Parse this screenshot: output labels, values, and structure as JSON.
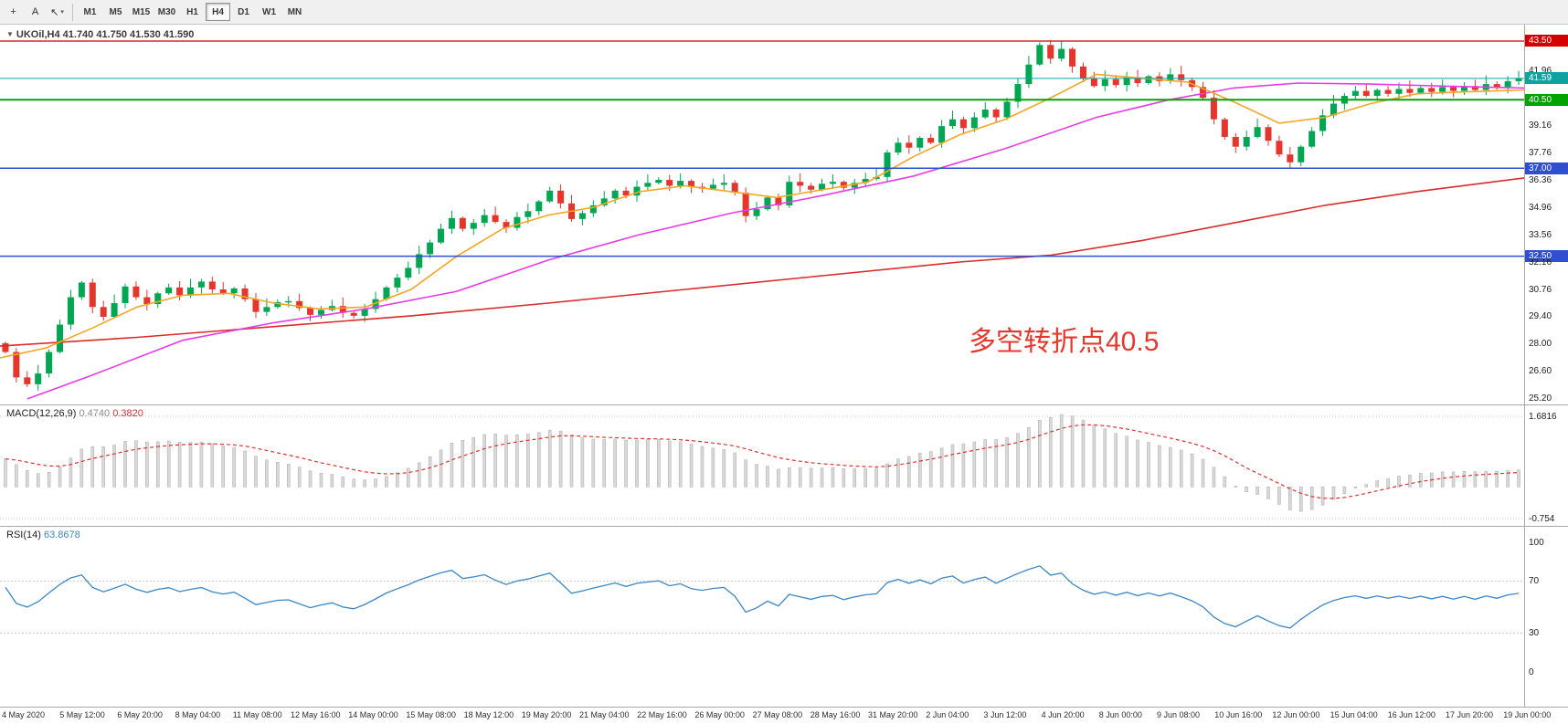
{
  "toolbar": {
    "crosshair_glyph": "+",
    "text_tool_label": "A",
    "arrow_tool_glyph": "↖",
    "dropdown_glyph": "▾",
    "timeframes": [
      "M1",
      "M5",
      "M15",
      "M30",
      "H1",
      "H4",
      "D1",
      "W1",
      "MN"
    ],
    "active_timeframe": "H4"
  },
  "chart_header": {
    "marker_glyph": "▼",
    "symbol_title": "UKOil,H4 41.740 41.750 41.530 41.590"
  },
  "annotation": {
    "text": "多空转折点40.5",
    "color": "#e8372c"
  },
  "indicators": {
    "macd": {
      "label": "MACD(12,26,9)",
      "value_main": "0.4740",
      "value_signal": "0.3820",
      "scale_max": "1.6816",
      "scale_min": "-0.754"
    },
    "rsi": {
      "label": "RSI(14)",
      "value": "63.8678",
      "levels": [
        "100",
        "70",
        "30",
        "0"
      ]
    }
  },
  "price_scale": {
    "labels": [
      {
        "value": 43.5,
        "text": "43.50",
        "style": "badge-red"
      },
      {
        "value": 41.96,
        "text": "41.96",
        "style": "plain"
      },
      {
        "value": 41.59,
        "text": "41.59",
        "style": "badge-teal"
      },
      {
        "value": 40.5,
        "text": "40.50",
        "style": "badge-green"
      },
      {
        "value": 39.16,
        "text": "39.16",
        "style": "plain"
      },
      {
        "value": 37.76,
        "text": "37.76",
        "style": "plain"
      },
      {
        "value": 37.0,
        "text": "37.00",
        "style": "badge-blue"
      },
      {
        "value": 36.36,
        "text": "36.36",
        "style": "plain"
      },
      {
        "value": 34.96,
        "text": "34.96",
        "style": "plain"
      },
      {
        "value": 33.56,
        "text": "33.56",
        "style": "plain"
      },
      {
        "value": 32.5,
        "text": "32.50",
        "style": "badge-blue"
      },
      {
        "value": 32.16,
        "text": "32.16",
        "style": "plain"
      },
      {
        "value": 30.76,
        "text": "30.76",
        "style": "plain"
      },
      {
        "value": 29.4,
        "text": "29.40",
        "style": "plain"
      },
      {
        "value": 28.0,
        "text": "28.00",
        "style": "plain"
      },
      {
        "value": 26.6,
        "text": "26.60",
        "style": "plain"
      },
      {
        "value": 25.2,
        "text": "25.20",
        "style": "plain"
      }
    ]
  },
  "time_axis": {
    "labels": [
      "4 May 2020",
      "5 May 12:00",
      "6 May 20:00",
      "8 May 04:00",
      "11 May 08:00",
      "12 May 16:00",
      "14 May 00:00",
      "15 May 08:00",
      "18 May 12:00",
      "19 May 20:00",
      "21 May 04:00",
      "22 May 16:00",
      "26 May 00:00",
      "27 May 08:00",
      "28 May 16:00",
      "31 May 20:00",
      "2 Jun 04:00",
      "3 Jun 12:00",
      "4 Jun 20:00",
      "8 Jun 00:00",
      "9 Jun 08:00",
      "10 Jun 16:00",
      "12 Jun 00:00",
      "15 Jun 04:00",
      "16 Jun 12:00",
      "17 Jun 20:00",
      "19 Jun 00:00"
    ]
  },
  "colors": {
    "candle_up": "#00a651",
    "candle_down": "#e5352c",
    "ma_fast": "#f5a623",
    "ma_mid": "#e63ce6",
    "ma_slow": "#d92b2b",
    "macd_hist": "#d9d9d9",
    "macd_hist_border": "#a9a9a9",
    "macd_signal": "#e03131",
    "rsi": "#3a87c8",
    "level_red": "#e02222",
    "level_teal": "#0fa3a0",
    "level_green": "#00a300",
    "level_blue": "#2e4fd0"
  },
  "chart_data": {
    "type": "candlestick",
    "symbol": "UKOil",
    "timeframe": "H4",
    "quote": {
      "open": 41.74,
      "high": 41.75,
      "low": 41.53,
      "close": 41.59
    },
    "price_axis": {
      "max": 44.34,
      "min": 24.87
    },
    "closes": [
      27.6,
      26.3,
      25.95,
      26.5,
      27.6,
      29.0,
      30.4,
      31.15,
      29.9,
      29.4,
      30.1,
      30.95,
      30.4,
      30.05,
      30.6,
      30.9,
      30.5,
      30.9,
      31.2,
      30.8,
      30.6,
      30.85,
      30.3,
      29.65,
      29.9,
      30.15,
      30.2,
      29.85,
      29.5,
      29.75,
      29.95,
      29.6,
      29.45,
      29.8,
      30.3,
      30.9,
      31.4,
      31.9,
      32.6,
      33.2,
      33.9,
      34.45,
      33.9,
      34.2,
      34.6,
      34.25,
      33.95,
      34.5,
      34.8,
      35.3,
      35.85,
      35.2,
      34.4,
      34.7,
      35.1,
      35.45,
      35.85,
      35.6,
      36.05,
      36.25,
      36.4,
      36.1,
      36.35,
      36.05,
      35.95,
      36.15,
      36.25,
      35.75,
      34.55,
      34.9,
      35.5,
      35.1,
      36.3,
      36.1,
      35.9,
      36.2,
      36.3,
      36.0,
      36.25,
      36.45,
      36.55,
      37.8,
      38.3,
      38.05,
      38.55,
      38.3,
      39.15,
      39.5,
      39.05,
      39.6,
      40.0,
      39.6,
      40.4,
      41.3,
      42.3,
      43.3,
      42.6,
      43.1,
      42.2,
      41.6,
      41.2,
      41.55,
      41.25,
      41.65,
      41.35,
      41.7,
      41.45,
      41.8,
      41.5,
      41.15,
      40.6,
      39.5,
      38.6,
      38.1,
      38.6,
      39.1,
      38.4,
      37.7,
      37.3,
      38.1,
      38.9,
      39.7,
      40.3,
      40.7,
      40.95,
      40.7,
      41.0,
      40.8,
      41.05,
      40.85,
      41.1,
      40.9,
      41.15,
      40.95,
      41.2,
      41.0,
      41.3,
      41.15,
      41.45,
      41.59
    ],
    "levels": [
      {
        "price": 43.5,
        "color": "#e02222",
        "width": 1.5
      },
      {
        "price": 41.59,
        "color": "#0fa3a0",
        "width": 1
      },
      {
        "price": 40.5,
        "color": "#00a300",
        "width": 2
      },
      {
        "price": 37.0,
        "color": "#2e4fd0",
        "width": 1.5
      },
      {
        "price": 32.5,
        "color": "#2e4fd0",
        "width": 1.5
      }
    ],
    "ma_fast_orange": [
      [
        0,
        27.3
      ],
      [
        50,
        27.8
      ],
      [
        100,
        28.8
      ],
      [
        150,
        29.9
      ],
      [
        200,
        30.5
      ],
      [
        250,
        30.6
      ],
      [
        300,
        30.1
      ],
      [
        350,
        29.8
      ],
      [
        400,
        29.9
      ],
      [
        450,
        30.8
      ],
      [
        500,
        32.5
      ],
      [
        550,
        33.9
      ],
      [
        600,
        34.6
      ],
      [
        650,
        35.0
      ],
      [
        700,
        35.8
      ],
      [
        750,
        36.1
      ],
      [
        800,
        35.8
      ],
      [
        850,
        35.5
      ],
      [
        900,
        35.9
      ],
      [
        950,
        36.3
      ],
      [
        1000,
        37.6
      ],
      [
        1050,
        38.7
      ],
      [
        1100,
        39.5
      ],
      [
        1150,
        40.6
      ],
      [
        1200,
        41.8
      ],
      [
        1250,
        41.6
      ],
      [
        1300,
        41.4
      ],
      [
        1350,
        40.4
      ],
      [
        1400,
        39.3
      ],
      [
        1450,
        39.6
      ],
      [
        1500,
        40.3
      ],
      [
        1550,
        40.8
      ],
      [
        1600,
        40.9
      ],
      [
        1668,
        41.0
      ]
    ],
    "ma_mid_magenta": [
      [
        30,
        25.2
      ],
      [
        100,
        26.4
      ],
      [
        200,
        28.2
      ],
      [
        300,
        29.1
      ],
      [
        400,
        29.8
      ],
      [
        500,
        30.7
      ],
      [
        600,
        32.3
      ],
      [
        700,
        33.6
      ],
      [
        800,
        34.7
      ],
      [
        900,
        35.6
      ],
      [
        1000,
        36.6
      ],
      [
        1100,
        38.0
      ],
      [
        1200,
        39.6
      ],
      [
        1280,
        40.5
      ],
      [
        1350,
        41.1
      ],
      [
        1420,
        41.35
      ],
      [
        1500,
        41.3
      ],
      [
        1580,
        41.2
      ],
      [
        1668,
        41.1
      ]
    ],
    "ma_slow_red": [
      [
        0,
        27.9
      ],
      [
        150,
        28.35
      ],
      [
        300,
        28.9
      ],
      [
        450,
        29.45
      ],
      [
        600,
        30.1
      ],
      [
        750,
        30.8
      ],
      [
        900,
        31.5
      ],
      [
        1050,
        32.2
      ],
      [
        1150,
        32.55
      ],
      [
        1250,
        33.3
      ],
      [
        1350,
        34.2
      ],
      [
        1450,
        35.1
      ],
      [
        1550,
        35.8
      ],
      [
        1668,
        36.5
      ]
    ],
    "macd_scale": {
      "max": 1.6816,
      "min": -0.754
    },
    "rsi_levels": [
      70,
      30
    ]
  }
}
